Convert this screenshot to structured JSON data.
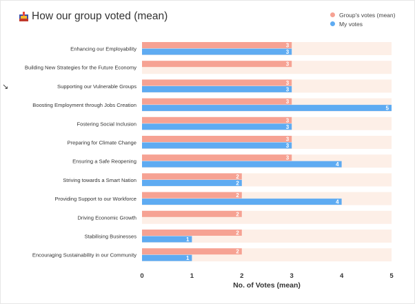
{
  "chart_title": "How our group voted (mean)",
  "icon": "trophy-icon",
  "colors": {
    "group": "#F6A293",
    "mine": "#5EABF2",
    "band": "#FDEFE7",
    "text": "#333333"
  },
  "legend": [
    {
      "name": "Group's votes (mean)",
      "color": "#F6A293"
    },
    {
      "name": "My votes",
      "color": "#5EABF2"
    }
  ],
  "chart_data": {
    "type": "bar",
    "orientation": "horizontal",
    "title": "How our group voted (mean)",
    "xlabel": "No. of Votes (mean)",
    "ylabel": "",
    "xlim": [
      0,
      5
    ],
    "xticks": [
      "0",
      "1",
      "2",
      "3",
      "4",
      "5"
    ],
    "legend_position": "top-right",
    "grid": false,
    "categories": [
      "Enhancing our Employability",
      "Building New Strategies for the Future Economy",
      "Supporting our Vulnerable Groups",
      "Boosting Employment through Jobs Creation",
      "Fostering Social Inclusion",
      "Preparing for Climate Change",
      "Ensuring a Safe Reopening",
      "Striving towards a Smart Nation",
      "Providing Support to our Workforce",
      "Driving Economic Growth",
      "Stabilising Businesses",
      "Encouraging Sustainability in our Community"
    ],
    "series": [
      {
        "name": "Group's votes (mean)",
        "color": "#F6A293",
        "values": [
          3,
          3,
          3,
          3,
          3,
          3,
          3,
          2,
          2,
          2,
          2,
          2
        ]
      },
      {
        "name": "My votes",
        "color": "#5EABF2",
        "values": [
          3,
          null,
          3,
          5,
          3,
          3,
          4,
          2,
          4,
          null,
          1,
          1
        ]
      }
    ]
  }
}
